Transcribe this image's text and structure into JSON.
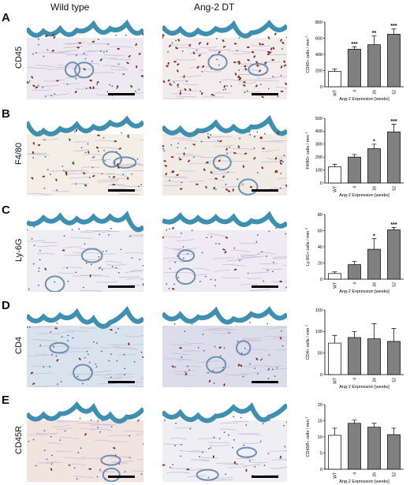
{
  "figure": {
    "column_headers": [
      "Wild type",
      "Ang-2 DT"
    ],
    "panels": [
      {
        "letter": "A",
        "marker": "CD45"
      },
      {
        "letter": "B",
        "marker": "F4/80"
      },
      {
        "letter": "C",
        "marker": "Ly-6G"
      },
      {
        "letter": "D",
        "marker": "CD4"
      },
      {
        "letter": "E",
        "marker": "CD45R"
      }
    ]
  },
  "colors": {
    "epidermis": "#3f8fb0",
    "dermis_wt": "#e8e4ee",
    "stain": "#8a2a1a",
    "bar_wt": "#ffffff",
    "bar_dt": "#808080"
  },
  "chart_data": [
    {
      "type": "bar",
      "categories": [
        "WT",
        "4",
        "26",
        "52"
      ],
      "values": [
        190,
        465,
        520,
        650
      ],
      "errors": [
        30,
        30,
        110,
        65
      ],
      "significance": [
        "",
        "***",
        "**",
        "***"
      ],
      "ylabel": "CD45+ cells / mm",
      "ylabel_sup": "2",
      "xlabel": "Ang-2  Expression [weeks]",
      "ylim": [
        0,
        800
      ],
      "yticks": [
        0,
        200,
        400,
        600,
        800
      ]
    },
    {
      "type": "bar",
      "categories": [
        "WT",
        "4",
        "26",
        "52"
      ],
      "values": [
        125,
        200,
        265,
        395
      ],
      "errors": [
        20,
        20,
        35,
        60
      ],
      "significance": [
        "",
        "",
        "*",
        "***"
      ],
      "ylabel": "F4/80+ cells / mm",
      "ylabel_sup": "2",
      "xlabel": "Ang-2  Expression [weeks]",
      "ylim": [
        0,
        500
      ],
      "yticks": [
        0,
        100,
        200,
        300,
        400,
        500
      ]
    },
    {
      "type": "bar",
      "categories": [
        "WT",
        "4",
        "26",
        "52"
      ],
      "values": [
        7,
        18,
        37,
        61
      ],
      "errors": [
        2,
        4,
        13,
        3
      ],
      "significance": [
        "",
        "",
        "*",
        "***"
      ],
      "ylabel": "Ly-6G+ cells / mm",
      "ylabel_sup": "2",
      "xlabel": "Ang-2  Expression [weeks]",
      "ylim": [
        0,
        80
      ],
      "yticks": [
        0,
        20,
        40,
        60,
        80
      ]
    },
    {
      "type": "bar",
      "categories": [
        "WT",
        "4",
        "26",
        "52"
      ],
      "values": [
        73,
        86,
        83,
        77
      ],
      "errors": [
        18,
        14,
        35,
        30
      ],
      "significance": [
        "",
        "",
        "",
        ""
      ],
      "ylabel": "CD4+ cells / mm",
      "ylabel_sup": "2",
      "xlabel": "Ang-2  Expression [weeks]",
      "ylim": [
        0,
        150
      ],
      "yticks": [
        0,
        50,
        100,
        150
      ]
    },
    {
      "type": "bar",
      "categories": [
        "WT",
        "4",
        "26",
        "52"
      ],
      "values": [
        10.5,
        14.2,
        13,
        10.7
      ],
      "errors": [
        2.2,
        1,
        1.2,
        2
      ],
      "significance": [
        "",
        "",
        "",
        ""
      ],
      "ylabel": "CD45R+ cells / mm",
      "ylabel_sup": "2",
      "xlabel": "Ang-2  Expression [weeks]",
      "ylim": [
        0,
        20
      ],
      "yticks": [
        0,
        5,
        10,
        15,
        20
      ]
    }
  ]
}
